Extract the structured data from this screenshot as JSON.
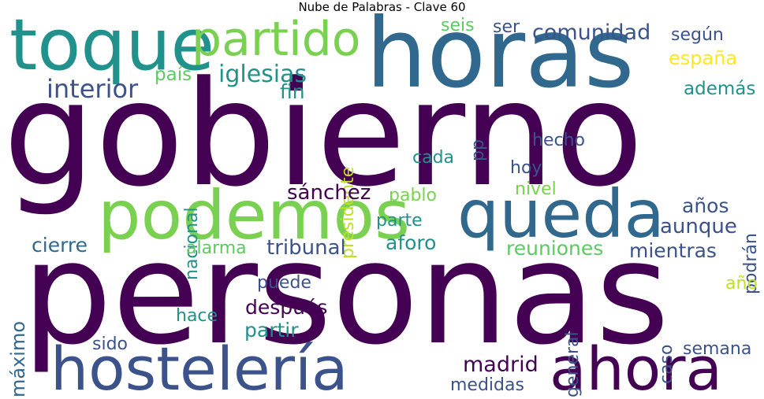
{
  "title": "Nube de Palabras - Clave 60",
  "words": [
    {
      "id": "gobierno",
      "text": "gobierno",
      "color": "#440154"
    },
    {
      "id": "personas",
      "text": "personas",
      "color": "#440154"
    },
    {
      "id": "horas",
      "text": "horas",
      "color": "#31688e"
    },
    {
      "id": "toque",
      "text": "toque",
      "color": "#21918c"
    },
    {
      "id": "partido",
      "text": "partido",
      "color": "#7ad151"
    },
    {
      "id": "podemos",
      "text": "podemos",
      "color": "#7ad151"
    },
    {
      "id": "queda",
      "text": "queda",
      "color": "#31688e"
    },
    {
      "id": "hosteleria",
      "text": "hostelería",
      "color": "#3b528b"
    },
    {
      "id": "ahora",
      "text": "ahora",
      "color": "#440154"
    },
    {
      "id": "iglesias",
      "text": "iglesias",
      "color": "#21918c"
    },
    {
      "id": "interior",
      "text": "interior",
      "color": "#3b528b"
    },
    {
      "id": "pais",
      "text": "país",
      "color": "#5ec962"
    },
    {
      "id": "fin",
      "text": "fin",
      "color": "#21918c"
    },
    {
      "id": "presidente",
      "text": "presidente",
      "color": "#bddf26"
    },
    {
      "id": "seis",
      "text": "seis",
      "color": "#5ec962"
    },
    {
      "id": "ser",
      "text": "ser",
      "color": "#3b528b"
    },
    {
      "id": "comunidad",
      "text": "comunidad",
      "color": "#3b528b"
    },
    {
      "id": "segun",
      "text": "según",
      "color": "#3b528b"
    },
    {
      "id": "espana",
      "text": "españa",
      "color": "#fde725"
    },
    {
      "id": "ademas",
      "text": "además",
      "color": "#21918c"
    },
    {
      "id": "pp",
      "text": "pp",
      "color": "#3b528b"
    },
    {
      "id": "hecho",
      "text": "hecho",
      "color": "#3b528b"
    },
    {
      "id": "cada",
      "text": "cada",
      "color": "#21918c"
    },
    {
      "id": "hoy",
      "text": "hoy",
      "color": "#3b528b"
    },
    {
      "id": "nivel",
      "text": "nivel",
      "color": "#7ad151"
    },
    {
      "id": "nacional",
      "text": "nacional",
      "color": "#21918c"
    },
    {
      "id": "sanchez",
      "text": "sánchez",
      "color": "#440154"
    },
    {
      "id": "pablo",
      "text": "pablo",
      "color": "#7ad151"
    },
    {
      "id": "anos",
      "text": "años",
      "color": "#3b528b"
    },
    {
      "id": "aunque",
      "text": "aunque",
      "color": "#3b528b"
    },
    {
      "id": "podran",
      "text": "podrán",
      "color": "#3b528b"
    },
    {
      "id": "parte",
      "text": "parte",
      "color": "#21918c"
    },
    {
      "id": "aforo",
      "text": "aforo",
      "color": "#21918c"
    },
    {
      "id": "cierre",
      "text": "cierre",
      "color": "#31688e"
    },
    {
      "id": "alarma",
      "text": "alarma",
      "color": "#5ec962"
    },
    {
      "id": "tribunal",
      "text": "tribunal",
      "color": "#3b528b"
    },
    {
      "id": "reuniones",
      "text": "reuniones",
      "color": "#5ec962"
    },
    {
      "id": "mientras",
      "text": "mientras",
      "color": "#3b528b"
    },
    {
      "id": "maximo",
      "text": "máximo",
      "color": "#31688e"
    },
    {
      "id": "puede",
      "text": "puede",
      "color": "#3b528b"
    },
    {
      "id": "despues",
      "text": "después",
      "color": "#440154"
    },
    {
      "id": "hace",
      "text": "hace",
      "color": "#21918c"
    },
    {
      "id": "partir",
      "text": "partir",
      "color": "#21918c"
    },
    {
      "id": "sido",
      "text": "sido",
      "color": "#3b528b"
    },
    {
      "id": "general",
      "text": "general",
      "color": "#3b528b"
    },
    {
      "id": "caso",
      "text": "caso",
      "color": "#3b528b"
    },
    {
      "id": "ano",
      "text": "año",
      "color": "#bddf26"
    },
    {
      "id": "semana",
      "text": "semana",
      "color": "#3b528b"
    },
    {
      "id": "madrid",
      "text": "madrid",
      "color": "#440154"
    },
    {
      "id": "medidas",
      "text": "medidas",
      "color": "#3b528b"
    }
  ]
}
